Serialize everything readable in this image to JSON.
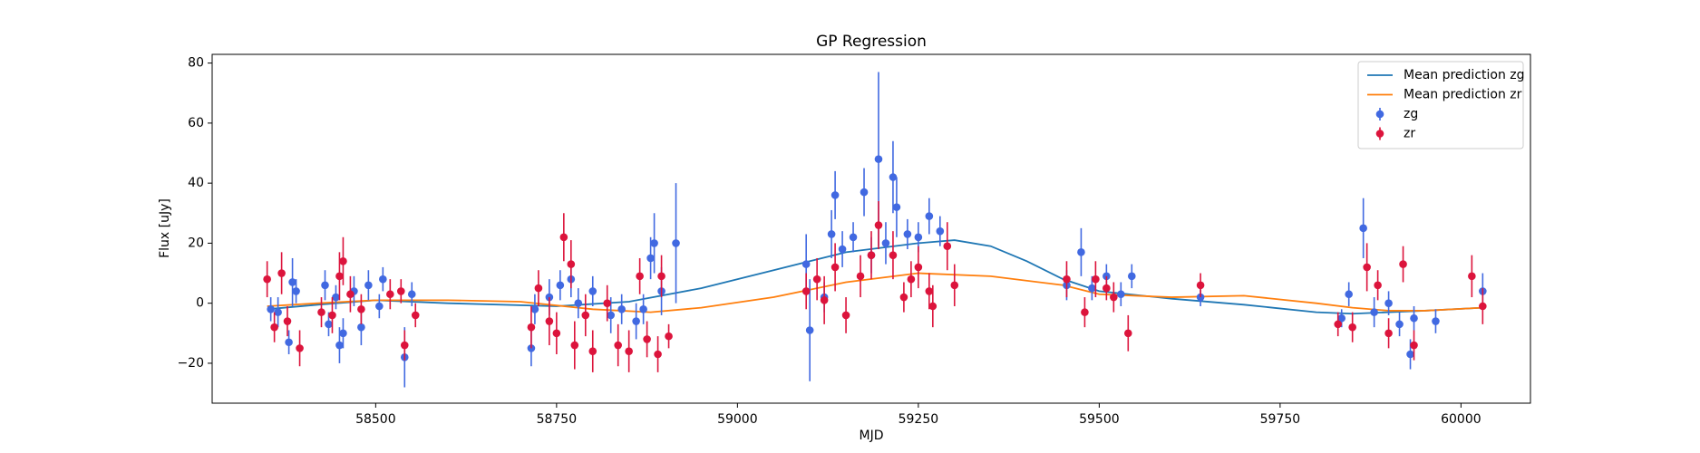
{
  "chart_data": {
    "type": "scatter",
    "title": "GP Regression",
    "xlabel": "MJD",
    "ylabel": "Flux [uJy]",
    "xlim": [
      58274,
      60096
    ],
    "ylim": [
      -33.3,
      82.9
    ],
    "xticks": [
      58500,
      58750,
      59000,
      59250,
      59500,
      59750,
      60000
    ],
    "yticks": [
      {
        "value": -20,
        "label": "−20"
      },
      0,
      20,
      40,
      60,
      80
    ],
    "legend": "upper right",
    "grid": false,
    "series": [
      {
        "name": "Mean prediction zg",
        "type": "line",
        "color": "#1f77b4",
        "x": [
          58350,
          58420,
          58500,
          58600,
          58750,
          58850,
          58950,
          59050,
          59150,
          59250,
          59300,
          59350,
          59400,
          59450,
          59500,
          59600,
          59700,
          59800,
          59850,
          59900,
          59950,
          60030
        ],
        "values": [
          -2,
          -0.5,
          1,
          0,
          -1,
          0.5,
          5,
          11,
          17,
          20,
          21,
          19,
          14,
          8,
          4,
          1.5,
          -0.5,
          -3,
          -3.5,
          -3,
          -2.5,
          -1.5
        ]
      },
      {
        "name": "Mean prediction zr",
        "type": "line",
        "color": "#ff7f0e",
        "x": [
          58350,
          58420,
          58500,
          58600,
          58700,
          58800,
          58880,
          58950,
          59050,
          59150,
          59250,
          59350,
          59450,
          59500,
          59600,
          59700,
          59800,
          59850,
          59900,
          59950,
          60030
        ],
        "values": [
          -1,
          0,
          1,
          1,
          0.5,
          -2,
          -3,
          -1.5,
          2,
          7,
          10,
          9,
          6,
          3,
          2,
          2.5,
          0,
          -1.5,
          -2.5,
          -2.5,
          -1.5
        ]
      },
      {
        "name": "zg",
        "type": "errorbar",
        "color": "#4169e1",
        "x": [
          58355,
          58365,
          58380,
          58385,
          58390,
          58430,
          58435,
          58445,
          58450,
          58455,
          58470,
          58480,
          58490,
          58505,
          58510,
          58540,
          58550,
          58715,
          58720,
          58740,
          58755,
          58770,
          58780,
          58800,
          58825,
          58840,
          58860,
          58870,
          58880,
          58885,
          58895,
          58915,
          59095,
          59100,
          59120,
          59130,
          59135,
          59145,
          59160,
          59175,
          59185,
          59195,
          59205,
          59215,
          59220,
          59235,
          59250,
          59265,
          59280,
          59455,
          59475,
          59490,
          59510,
          59530,
          59545,
          59640,
          59835,
          59845,
          59865,
          59880,
          59900,
          59915,
          59930,
          59935,
          59965,
          60030
        ],
        "values": [
          -2,
          -3,
          -13,
          7,
          4,
          6,
          -7,
          2,
          -14,
          -10,
          4,
          -8,
          6,
          -1,
          8,
          -18,
          3,
          -15,
          -2,
          2,
          6,
          8,
          0,
          4,
          -4,
          -2,
          -6,
          -2,
          15,
          20,
          4,
          20,
          13,
          -9,
          2,
          23,
          36,
          18,
          22,
          37,
          16,
          48,
          20,
          42,
          32,
          23,
          22,
          29,
          24,
          6,
          17,
          5,
          9,
          3,
          9,
          2,
          -5,
          3,
          25,
          -3,
          0,
          -7,
          -17,
          -5,
          -6,
          4
        ],
        "errors": [
          4,
          5,
          4,
          8,
          4,
          5,
          4,
          4,
          6,
          5,
          5,
          6,
          5,
          4,
          4,
          10,
          4,
          6,
          5,
          6,
          5,
          6,
          5,
          5,
          6,
          5,
          6,
          5,
          7,
          10,
          8,
          20,
          10,
          17,
          5,
          8,
          8,
          6,
          5,
          8,
          6,
          29,
          7,
          12,
          10,
          5,
          5,
          6,
          5,
          5,
          8,
          4,
          4,
          4,
          4,
          3,
          3,
          4,
          10,
          5,
          4,
          4,
          5,
          4,
          4,
          6
        ]
      },
      {
        "name": "zr",
        "type": "errorbar",
        "color": "#dc143c",
        "x": [
          58350,
          58360,
          58370,
          58378,
          58395,
          58425,
          58440,
          58450,
          58455,
          58465,
          58480,
          58520,
          58535,
          58540,
          58555,
          58715,
          58725,
          58740,
          58750,
          58760,
          58770,
          58775,
          58790,
          58800,
          58820,
          58835,
          58850,
          58865,
          58875,
          58890,
          58895,
          58905,
          59095,
          59110,
          59120,
          59135,
          59150,
          59170,
          59185,
          59195,
          59215,
          59230,
          59240,
          59250,
          59265,
          59270,
          59290,
          59300,
          59455,
          59480,
          59495,
          59510,
          59520,
          59540,
          59640,
          59830,
          59850,
          59870,
          59885,
          59900,
          59920,
          59935,
          60015,
          60030
        ],
        "values": [
          8,
          -8,
          10,
          -6,
          -15,
          -3,
          -4,
          9,
          14,
          3,
          -2,
          3,
          4,
          -14,
          -4,
          -8,
          5,
          -6,
          -10,
          22,
          13,
          -14,
          -4,
          -16,
          0,
          -14,
          -16,
          9,
          -12,
          -17,
          9,
          -11,
          4,
          8,
          1,
          12,
          -4,
          9,
          16,
          26,
          16,
          2,
          8,
          12,
          4,
          -1,
          19,
          6,
          8,
          -3,
          8,
          5,
          2,
          -10,
          6,
          -7,
          -8,
          12,
          6,
          -10,
          13,
          -14,
          9,
          -1
        ],
        "errors": [
          6,
          5,
          7,
          5,
          6,
          5,
          6,
          8,
          8,
          6,
          5,
          5,
          4,
          5,
          4,
          7,
          6,
          8,
          7,
          8,
          8,
          8,
          7,
          7,
          6,
          7,
          7,
          6,
          6,
          6,
          7,
          4,
          6,
          7,
          8,
          8,
          6,
          7,
          8,
          8,
          8,
          5,
          6,
          7,
          6,
          7,
          8,
          7,
          6,
          5,
          6,
          4,
          5,
          6,
          4,
          4,
          5,
          8,
          5,
          5,
          6,
          5,
          7,
          6
        ]
      }
    ]
  }
}
